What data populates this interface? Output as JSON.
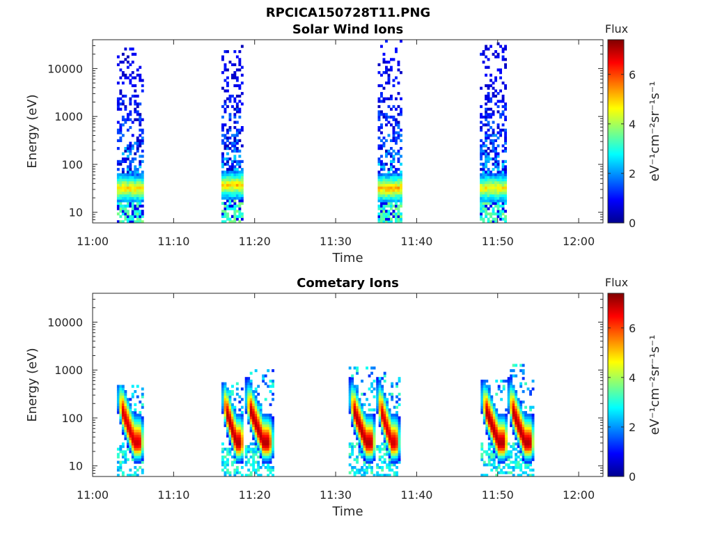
{
  "figure_title": "RPCICA150728T11.PNG",
  "chart_data": [
    {
      "type": "heatmap",
      "title": "Solar Wind Ions",
      "xlabel": "Time",
      "ylabel": "Energy (eV)",
      "x_ticks": [
        "11:00",
        "11:10",
        "11:20",
        "11:30",
        "11:40",
        "11:50",
        "12:00"
      ],
      "x_range_minutes": [
        0,
        63
      ],
      "y_ticks": [
        "10",
        "100",
        "1000",
        "10000"
      ],
      "y_scale": "log",
      "y_range": [
        6,
        40000
      ],
      "colorbar": {
        "label": "Flux",
        "unit": "eV⁻¹cm⁻²sr⁻¹s⁻¹",
        "range": [
          0,
          7.4
        ],
        "ticks": [
          "0",
          "2",
          "4",
          "6"
        ]
      },
      "bursts": [
        {
          "start_min": 3.0,
          "end_min": 6.2,
          "peak_energy": 30,
          "peak_flux": 5.0,
          "max_energy": 30000
        },
        {
          "start_min": 15.9,
          "end_min": 18.6,
          "peak_energy": 35,
          "peak_flux": 5.0,
          "max_energy": 35000
        },
        {
          "start_min": 35.2,
          "end_min": 38.2,
          "peak_energy": 30,
          "peak_flux": 5.2,
          "max_energy": 38000
        },
        {
          "start_min": 47.8,
          "end_min": 51.0,
          "peak_energy": 30,
          "peak_flux": 4.8,
          "max_energy": 33000
        }
      ]
    },
    {
      "type": "heatmap",
      "title": "Cometary Ions",
      "xlabel": "Time",
      "ylabel": "Energy (eV)",
      "x_ticks": [
        "11:00",
        "11:10",
        "11:20",
        "11:30",
        "11:40",
        "11:50",
        "12:00"
      ],
      "x_range_minutes": [
        0,
        63
      ],
      "y_ticks": [
        "10",
        "100",
        "1000",
        "10000"
      ],
      "y_scale": "log",
      "y_range": [
        6,
        40000
      ],
      "colorbar": {
        "label": "Flux",
        "unit": "eV⁻¹cm⁻²sr⁻¹s⁻¹",
        "range": [
          0,
          7.4
        ],
        "ticks": [
          "0",
          "2",
          "4",
          "6"
        ]
      },
      "bursts": [
        {
          "start_min": 3.0,
          "end_min": 6.2,
          "peak_energy": 28,
          "peak_flux": 6.8,
          "max_energy": 450
        },
        {
          "start_min": 15.9,
          "end_min": 18.6,
          "peak_energy": 28,
          "peak_flux": 7.0,
          "max_energy": 500
        },
        {
          "start_min": 18.8,
          "end_min": 22.2,
          "peak_energy": 28,
          "peak_flux": 7.0,
          "max_energy": 1000
        },
        {
          "start_min": 31.6,
          "end_min": 34.8,
          "peak_energy": 28,
          "peak_flux": 7.0,
          "max_energy": 1100
        },
        {
          "start_min": 35.0,
          "end_min": 37.8,
          "peak_energy": 28,
          "peak_flux": 6.8,
          "max_energy": 900
        },
        {
          "start_min": 47.9,
          "end_min": 51.2,
          "peak_energy": 28,
          "peak_flux": 7.0,
          "max_energy": 600
        },
        {
          "start_min": 51.2,
          "end_min": 54.4,
          "peak_energy": 28,
          "peak_flux": 7.0,
          "max_energy": 1300
        }
      ]
    }
  ]
}
